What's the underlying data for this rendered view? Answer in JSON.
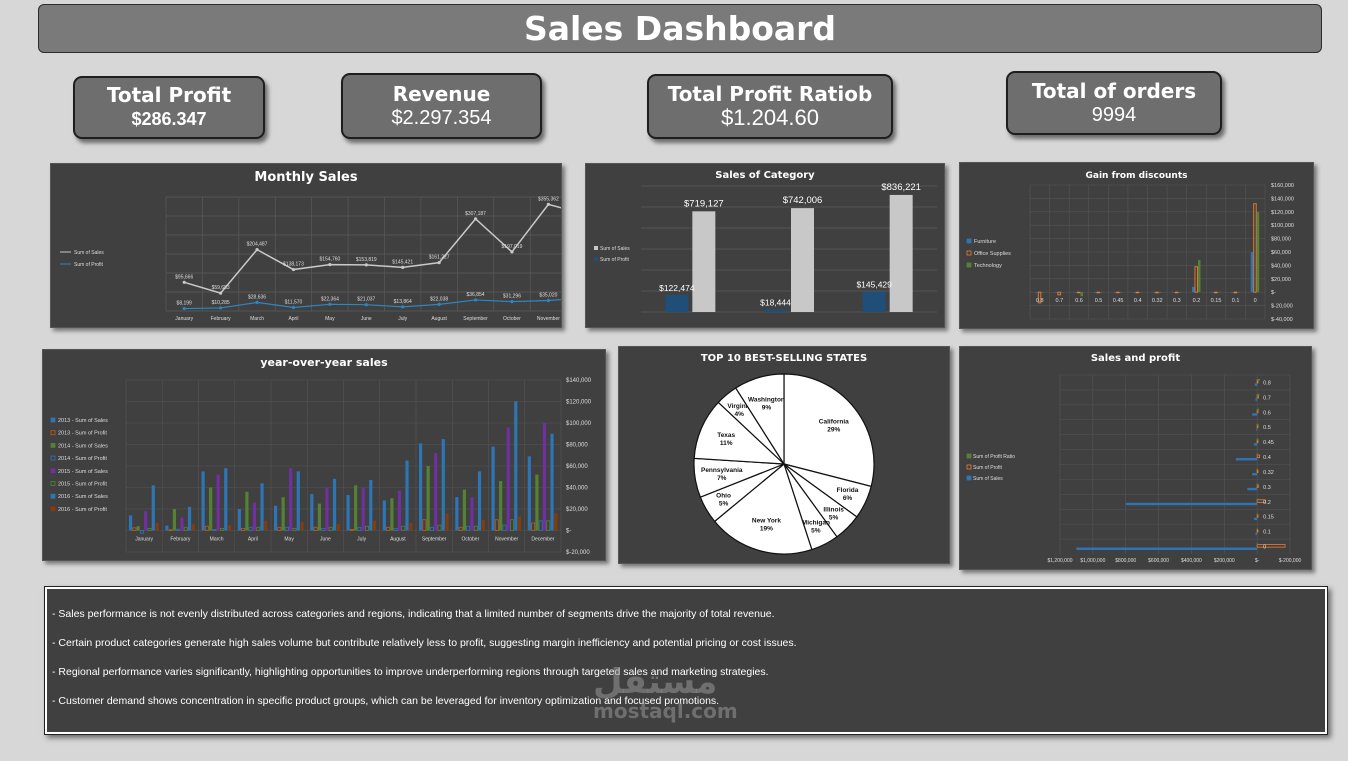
{
  "header": {
    "title": "Sales Dashboard"
  },
  "kpis": [
    {
      "label": "Total Profit",
      "value": "$286.347"
    },
    {
      "label": "Revenue",
      "value": "$2.297.354"
    },
    {
      "label": "Total Profit Ratiob",
      "value": "$1.204.60"
    },
    {
      "label": "Total of orders",
      "value": "9994"
    }
  ],
  "chart_data": [
    {
      "id": "monthly",
      "type": "line",
      "title": "Monthly Sales",
      "categories": [
        "January",
        "February",
        "March",
        "April",
        "May",
        "June",
        "July",
        "August",
        "September",
        "October",
        "November",
        "December"
      ],
      "series": [
        {
          "name": "Sum of Sales",
          "values": [
            95666,
            59653,
            204487,
            138173,
            154760,
            153819,
            145421,
            161227,
            307187,
            197019,
            355362,
            323339
          ],
          "labels": [
            "$95,666",
            "$59,653",
            "$204,487",
            "$138,173",
            "$154,760",
            "$153,819",
            "$145,421",
            "$161,227",
            "$307,187",
            "$197,019",
            "$355,362",
            "$323,339"
          ],
          "color": "#c9c9c9"
        },
        {
          "name": "Sum of Profit",
          "values": [
            8199,
            10285,
            28636,
            11570,
            22364,
            21037,
            13864,
            22038,
            36854,
            31296,
            35020,
            43384
          ],
          "labels": [
            "$8,199",
            "$10,285",
            "$28,636",
            "$11,570",
            "$22,364",
            "$21,037",
            "$13,864",
            "$22,038",
            "$36,854",
            "$31,296",
            "$35,020",
            "$43,384"
          ],
          "color": "#2e86c1"
        }
      ],
      "ylim": [
        0,
        380000
      ]
    },
    {
      "id": "category",
      "type": "bar",
      "title": "Sales of Category",
      "categories": [
        "Furniture",
        "Office Supplies",
        "Technology"
      ],
      "series": [
        {
          "name": "Sum of Sales",
          "values": [
            719127,
            742006,
            836221
          ],
          "labels": [
            "$719,127",
            "$742,006",
            "$836,221"
          ],
          "color": "#c8c8c8"
        },
        {
          "name": "Sum of Profit",
          "values": [
            122474,
            18444,
            145429
          ],
          "labels": [
            "$122,474",
            "$18,444",
            "$145,429"
          ],
          "color": "#1f4e79"
        }
      ],
      "ylim": [
        0,
        900000
      ]
    },
    {
      "id": "discounts",
      "type": "bar",
      "title": "Gain from discounts",
      "categories": [
        "0.8",
        "0.7",
        "0.6",
        "0.5",
        "0.45",
        "0.4",
        "0.32",
        "0.3",
        "0.2",
        "0.15",
        "0.1",
        "0"
      ],
      "series": [
        {
          "name": "Furniture",
          "values": [
            -500,
            -600,
            -400,
            -500,
            -300,
            -400,
            -600,
            -800,
            8000,
            -400,
            -300,
            60000
          ],
          "color": "#2e75b6"
        },
        {
          "name": "Office Supplies",
          "values": [
            -16000,
            -4000,
            -700,
            -900,
            0,
            -600,
            0,
            -500,
            38000,
            -600,
            -300,
            132000
          ],
          "color": "#ed7d31"
        },
        {
          "name": "Technology",
          "values": [
            -400,
            -500,
            -6000,
            -800,
            -200,
            -500,
            -400,
            -600,
            48000,
            -500,
            -300,
            120000
          ],
          "color": "#548235"
        }
      ],
      "yticks": [
        "$160,000",
        "$140,000",
        "$120,000",
        "$100,000",
        "$80,000",
        "$60,000",
        "$40,000",
        "$20,000",
        "$-",
        "$-20,000",
        "$-40,000"
      ],
      "ylim": [
        -40000,
        160000
      ]
    },
    {
      "id": "yoy",
      "type": "bar",
      "title": "year-over-year sales",
      "categories": [
        "January",
        "February",
        "March",
        "April",
        "May",
        "June",
        "July",
        "August",
        "September",
        "October",
        "November",
        "December"
      ],
      "series": [
        {
          "name": "2013 - Sum of Sales",
          "values": [
            14000,
            4500,
            55000,
            20000,
            23000,
            34000,
            33000,
            28000,
            81000,
            31000,
            78000,
            69000
          ],
          "color": "#2e75b6"
        },
        {
          "name": "2013 - Sum of Profit",
          "values": [
            2500,
            700,
            4000,
            2000,
            3000,
            3000,
            1000,
            3000,
            10000,
            3000,
            10000,
            7000
          ],
          "color": "#c55a11"
        },
        {
          "name": "2014 - Sum of Sales",
          "values": [
            4000,
            20000,
            40000,
            36000,
            31000,
            25000,
            42000,
            30000,
            60000,
            38000,
            46000,
            52000
          ],
          "color": "#548235"
        },
        {
          "name": "2014 - Sum of Profit",
          "values": [
            -2500,
            1200,
            1000,
            3000,
            3000,
            2000,
            3000,
            2000,
            3000,
            4000,
            5000,
            9000
          ],
          "color": "#2e75b6"
        },
        {
          "name": "2015 - Sum of Sales",
          "values": [
            18000,
            12000,
            52000,
            26000,
            58000,
            40000,
            40000,
            37000,
            72000,
            31000,
            96000,
            100000
          ],
          "color": "#7030a0"
        },
        {
          "name": "2015 - Sum of Profit",
          "values": [
            2000,
            3000,
            2000,
            3000,
            2000,
            3000,
            4000,
            4000,
            5000,
            4000,
            10000,
            9000
          ],
          "color": "#548235"
        },
        {
          "name": "2016 - Sum of Sales",
          "values": [
            42000,
            22000,
            58000,
            44000,
            55000,
            48000,
            47000,
            65000,
            85000,
            55000,
            120000,
            90000
          ],
          "color": "#2e75b6"
        },
        {
          "name": "2016 - Sum of Profit",
          "values": [
            7000,
            6000,
            5000,
            9000,
            8000,
            6000,
            9000,
            7000,
            16000,
            10000,
            13000,
            16000
          ],
          "color": "#843c0c"
        }
      ],
      "yticks": [
        "$140,000",
        "$120,000",
        "$100,000",
        "$80,000",
        "$60,000",
        "$40,000",
        "$20,000",
        "$-",
        "$-20,000"
      ],
      "ylim": [
        -20000,
        140000
      ]
    },
    {
      "id": "states",
      "type": "pie",
      "title": "TOP 10 BEST-SELLING STATES",
      "categories": [
        "California",
        "Florida",
        "Illinois",
        "Michigan",
        "New York",
        "Ohio",
        "Pennsylvania",
        "Texas",
        "Virginia",
        "Washington"
      ],
      "values": [
        29,
        6,
        5,
        5,
        19,
        5,
        7,
        11,
        4,
        9
      ],
      "labels": [
        "29%",
        "6%",
        "5%",
        "5%",
        "19%",
        "5%",
        "7%",
        "11%",
        "4%",
        "9%"
      ]
    },
    {
      "id": "salesprofit",
      "type": "bar",
      "orientation": "horizontal",
      "title": "Sales and profit",
      "categories": [
        "0.8",
        "0.7",
        "0.6",
        "0.5",
        "0.45",
        "0.4",
        "0.32",
        "0.3",
        "0.2",
        "0.15",
        "0.1",
        "0"
      ],
      "series": [
        {
          "name": "Sum of Profit Ratio",
          "values": [
            0.8,
            0.7,
            0.6,
            0.5,
            0.45,
            0.4,
            0.32,
            0.3,
            0.2,
            0.15,
            0.1,
            0
          ],
          "color": "#548235"
        },
        {
          "name": "Sum of Profit",
          "values": [
            -3000,
            -8000,
            -5000,
            -5000,
            -1000,
            -15000,
            -3000,
            -7000,
            -50000,
            -5000,
            -2000,
            -170000
          ],
          "color": "#ed7d31"
        },
        {
          "name": "Sum of Sales",
          "values": [
            15000,
            10000,
            30000,
            5000,
            20000,
            130000,
            30000,
            60000,
            800000,
            20000,
            10000,
            1100000
          ],
          "color": "#2e75b6"
        }
      ],
      "xticks": [
        "$1,200,000",
        "$1,000,000",
        "$800,000",
        "$600,000",
        "$400,000",
        "$200,000",
        "$-",
        "$-200,000"
      ],
      "xlim": [
        -200000,
        1200000
      ]
    }
  ],
  "insights": [
    "- Sales performance is not evenly distributed across categories and regions, indicating that a limited number of segments drive the majority of total revenue.",
    "- Certain product categories generate high sales volume but contribute relatively less to profit, suggesting margin inefficiency and potential pricing or cost issues.",
    "- Regional performance varies significantly, highlighting opportunities to improve underperforming regions through targeted sales and marketing strategies.",
    "- Customer demand shows concentration in specific product groups, which can be leveraged for inventory optimization and focused promotions."
  ],
  "watermark": {
    "arabic": "مستقل",
    "latin": "mostaql.com"
  }
}
